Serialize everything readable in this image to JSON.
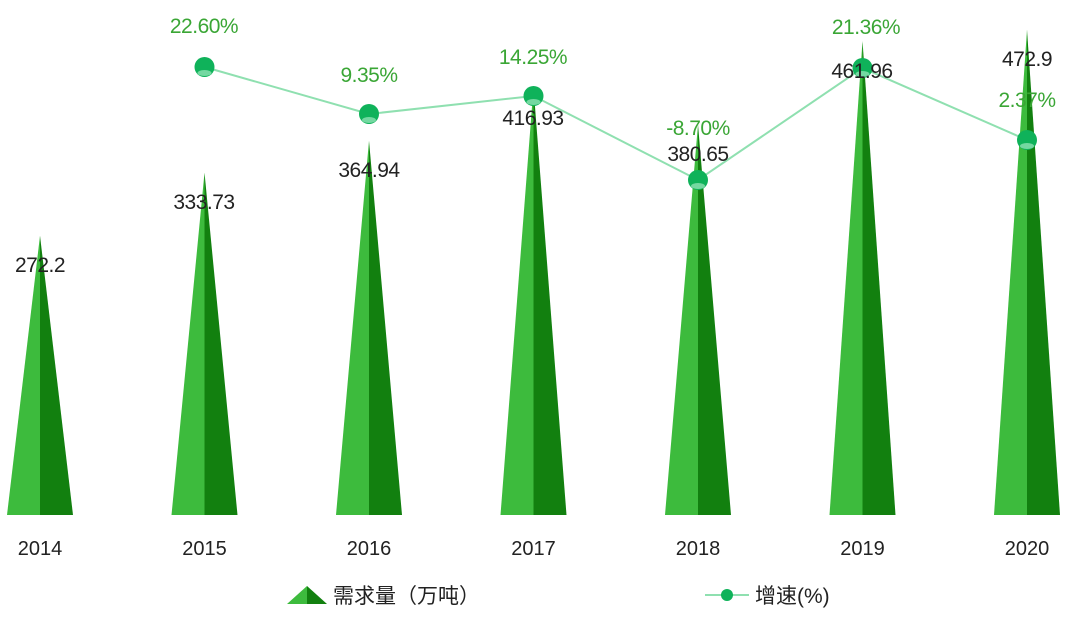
{
  "colors": {
    "bar_light": "#3dbb3d",
    "bar_dark": "#12800f",
    "line": "#8fe0b0",
    "marker": "#0fb25a",
    "pct_label": "#3aa635",
    "value_label": "#222222"
  },
  "legend": {
    "bar_label": "需求量（万吨）",
    "line_label": "增速(%)"
  },
  "chart_data": {
    "type": "bar+line",
    "categories": [
      "2014",
      "2015",
      "2016",
      "2017",
      "2018",
      "2019",
      "2020"
    ],
    "series": [
      {
        "name": "需求量（万吨）",
        "type": "bar",
        "shape": "triangle",
        "values": [
          272.2,
          333.73,
          364.94,
          416.93,
          380.65,
          461.96,
          472.9
        ],
        "labels": [
          "272.2",
          "333.73",
          "364.94",
          "416.93",
          "380.65",
          "461.96",
          "472.9"
        ]
      },
      {
        "name": "增速(%)",
        "type": "line",
        "values": [
          null,
          22.6,
          9.35,
          14.25,
          -8.7,
          21.36,
          2.37
        ],
        "labels": [
          "",
          "22.60%",
          "9.35%",
          "14.25%",
          "-8.70%",
          "21.36%",
          "2.37%"
        ]
      }
    ],
    "title": "",
    "xlabel": "",
    "ylabel": "",
    "grid": false,
    "legend_position": "bottom"
  }
}
